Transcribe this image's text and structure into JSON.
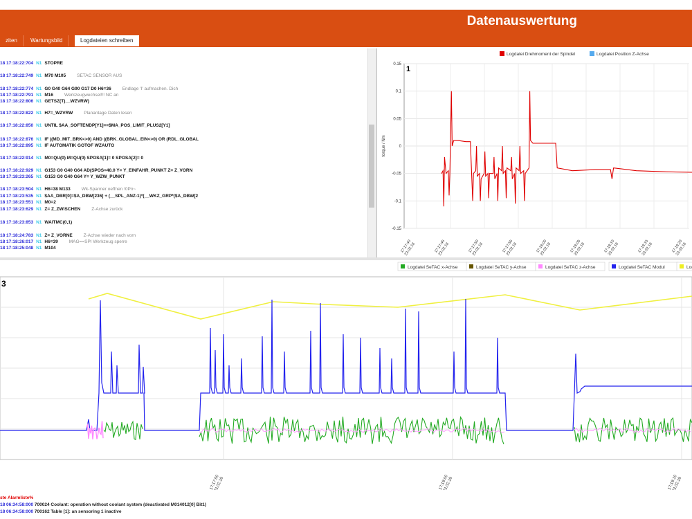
{
  "header": {
    "title": "Datenauswertung"
  },
  "tabs": [
    {
      "label": "ziten",
      "active": false
    },
    {
      "label": "Wartungsbild",
      "active": false
    },
    {
      "label": "Logdateien schreiben",
      "active": true
    }
  ],
  "log_lines": [
    {
      "ts": "18 17:18:22:704",
      "nb": "N1",
      "cmd": "STOPRE",
      "cmt": ""
    },
    {
      "ts": "18 17:18:22:749",
      "nb": "N1",
      "cmd": "M70 M105",
      "cmt": "SETAC SENSOR AUS"
    },
    {
      "ts": "18 17:18:22:774",
      "nb": "N1",
      "cmd": "G0 G40 G64 G90 G17 D0 H6=36",
      "cmt": "Endlage 'I' aufmachen. Dich"
    },
    {
      "ts": "18 17:18:22:791",
      "nb": "N1",
      "cmd": "M16",
      "cmt": "Werkzeugwechsel!!! NC an"
    },
    {
      "ts": "18 17:18:22:806",
      "nb": "N1",
      "cmd": "GETSZ(T)__WZVRW)",
      "cmt": ""
    },
    {
      "ts": "18 17:18:22:822",
      "nb": "N1",
      "cmd": "H7=_WZVRW",
      "cmt": "Planantage Daten lesen"
    },
    {
      "ts": "18 17:18:22:850",
      "nb": "N1",
      "cmd": "UNTIL $AA_SOFTENDP[Y1]==$MA_POS_LIMIT_PLUS2[Y1]",
      "cmt": ""
    },
    {
      "ts": "18 17:18:22:876",
      "nb": "N1",
      "cmd": "IF ((MD_MIT_BRK<>0) AND ((BRK_GLOBAL_EIN<>0) OR (RDL_GLOBAL",
      "cmt": ""
    },
    {
      "ts": "18 17:18:22:895",
      "nb": "N1",
      "cmd": "IF AUTOMATIK GOTOF WZAUTO",
      "cmt": ""
    },
    {
      "ts": "18 17:18:22:914",
      "nb": "N1",
      "cmd": "M0=QU(0) M=QU(0) SPOSA[1]= 0 SPOSA[2]= 0",
      "cmt": ""
    },
    {
      "ts": "18 17:18:22:929",
      "nb": "N1",
      "cmd": "G153 G0 G40 G64 AD(SPOS=40.0 Y= Y_EINFAHR_PUNKT Z= Z_VORN",
      "cmt": ""
    },
    {
      "ts": "18 17:18:23:265",
      "nb": "N1",
      "cmd": "G153 G0 G40 G64 Y= Y_WZW_PUNKT",
      "cmt": ""
    },
    {
      "ts": "18 17:18:23:504",
      "nb": "N1",
      "cmd": "H6=38 M133",
      "cmt": "Wk-Spanner oeffnen !0Pn~"
    },
    {
      "ts": "18 17:18:23:535",
      "nb": "N1",
      "cmd": "$AA_DBR[0]=$A_DBW[236] + (__SPL_ANZ-1)*(__WKZ_GRP*($A_DBW[2",
      "cmt": ""
    },
    {
      "ts": "18 17:18:23:551",
      "nb": "N1",
      "cmd": "M0=2",
      "cmt": ""
    },
    {
      "ts": "18 17:18:23:629",
      "nb": "N1",
      "cmd": "Z= Z_ZWISCHEN",
      "cmt": "Z-Achse zurück"
    },
    {
      "ts": "18 17:18:23:853",
      "nb": "N1",
      "cmd": "WAITMC(0,1)",
      "cmt": ""
    },
    {
      "ts": "18 17:18:24:783",
      "nb": "N1",
      "cmd": "Z= Z_VORNE",
      "cmt": "Z-Achse wieder nach vorn"
    },
    {
      "ts": "18 17:18:26:017",
      "nb": "N1",
      "cmd": "H6=39",
      "cmt": "MAG==SPI Werkzeug sperre"
    },
    {
      "ts": "18 17:18:25:048",
      "nb": "N1",
      "cmd": "M104",
      "cmt": ""
    }
  ],
  "chart1": {
    "number": "1",
    "legend": [
      {
        "name": "Logdatei Drehmoment der Spindel",
        "color": "#e00000"
      },
      {
        "name": "Logdatei Position Z-Achse",
        "color": "#55aaee"
      }
    ],
    "ylabel": "torque / Nm",
    "yticks": [
      "0.15",
      "0.1",
      "0.05",
      "0",
      "-0.05",
      "-0.1",
      "-0.15"
    ],
    "xticks": [
      "17:17:40 23.02.18",
      "17:17:45 23.02.18",
      "17:17:50 23.02.18",
      "17:17:55 23.02.18",
      "17:18:00 23.02.18",
      "17:18:05 23.02.18",
      "17:18:10 23.02.18",
      "17:18:15 23.02.18",
      "17:18:20 23.02.18"
    ]
  },
  "chart3": {
    "number": "3",
    "legend": [
      {
        "name": "Logdatei SeTAC x-Achse",
        "color": "#22aa22"
      },
      {
        "name": "Logdatei SeTAC y-Achse",
        "color": "#665500"
      },
      {
        "name": "Logdatei SeTAC z-Achse",
        "color": "#ff88ff"
      },
      {
        "name": "Logdatei SeTAC Modul",
        "color": "#2222ee"
      },
      {
        "name": "Logdatei",
        "color": "#eeee22"
      }
    ],
    "xticks": [
      "23.02.18",
      "17:17:50 23.02.18",
      "17:18:00 23.02.18",
      "17:18:10 23.02.18"
    ]
  },
  "alarms": {
    "heading": "ste Alarmliste%",
    "lines": [
      {
        "ts": "18 06:34:58:000",
        "text": "700024 Coolant: operation without coolant system (deactivated M014012[0] Bit1)"
      },
      {
        "ts": "18 06:34:58:000",
        "text": "700162 Table [1]: an sensoring 1 inactive"
      }
    ]
  },
  "colors": {
    "accent": "#d94e12"
  }
}
